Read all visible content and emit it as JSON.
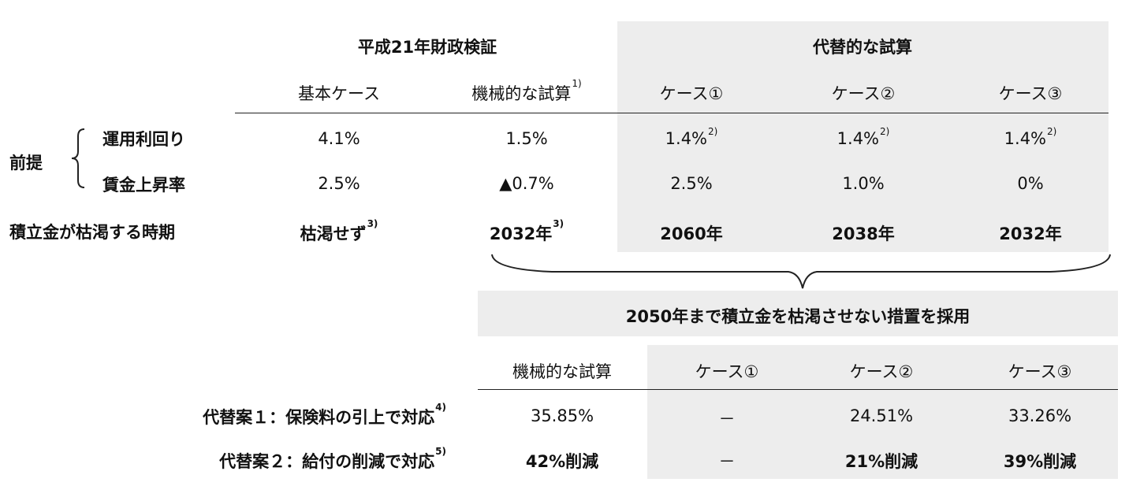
{
  "top_table": {
    "group_headers": {
      "h21": "平成21年財政検証",
      "alt": "代替的な試算"
    },
    "columns": [
      {
        "label": "基本ケース",
        "sup": ""
      },
      {
        "label": "機械的な試算",
        "sup": "1)"
      },
      {
        "label": "ケース①",
        "sup": ""
      },
      {
        "label": "ケース②",
        "sup": ""
      },
      {
        "label": "ケース③",
        "sup": ""
      }
    ],
    "premise_label": "前提",
    "rows": [
      {
        "label": "運用利回り",
        "cells": [
          {
            "v": "4.1%",
            "sup": ""
          },
          {
            "v": "1.5%",
            "sup": ""
          },
          {
            "v": "1.4%",
            "sup": "2)"
          },
          {
            "v": "1.4%",
            "sup": "2)"
          },
          {
            "v": "1.4%",
            "sup": "2)"
          }
        ]
      },
      {
        "label": "賃金上昇率",
        "cells": [
          {
            "v": "2.5%",
            "sup": ""
          },
          {
            "v": "▲0.7%",
            "sup": ""
          },
          {
            "v": "2.5%",
            "sup": ""
          },
          {
            "v": "1.0%",
            "sup": ""
          },
          {
            "v": "0%",
            "sup": ""
          }
        ]
      },
      {
        "label": "積立金が枯渇する時期",
        "cells": [
          {
            "v": "枯渇せず",
            "sup": "3)"
          },
          {
            "v": "2032年",
            "sup": "3)"
          },
          {
            "v": "2060年",
            "sup": ""
          },
          {
            "v": "2038年",
            "sup": ""
          },
          {
            "v": "2032年",
            "sup": ""
          }
        ]
      }
    ]
  },
  "measure_banner": "2050年まで積立金を枯渇させない措置を採用",
  "bottom_table": {
    "columns": [
      "機械的な試算",
      "ケース①",
      "ケース②",
      "ケース③"
    ],
    "rows": [
      {
        "label": "代替案１：保険料の引上で対応",
        "sup": "4)",
        "cells": [
          "35.85%",
          "－",
          "24.51%",
          "33.26%"
        ]
      },
      {
        "label": "代替案２：給付の削減で対応",
        "sup": "5)",
        "cells": [
          "42%削減",
          "－",
          "21%削減",
          "39%削減"
        ]
      }
    ]
  }
}
